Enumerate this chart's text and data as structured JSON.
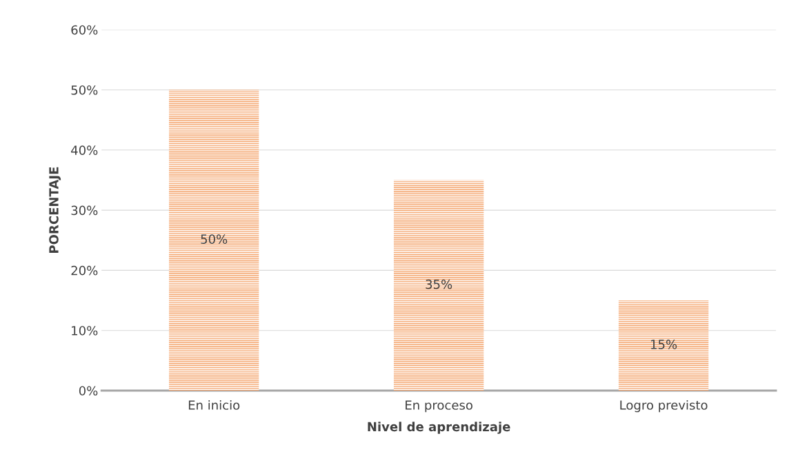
{
  "chart_data": {
    "type": "bar",
    "categories": [
      "En inicio",
      "En proceso",
      "Logro previsto"
    ],
    "values": [
      50,
      35,
      15
    ],
    "value_labels": [
      "50%",
      "35%",
      "15%"
    ],
    "color": "#f4a46c",
    "xlabel": "Nivel de aprendizaje",
    "ylabel": "PORCENTAJE",
    "ylim": [
      0,
      60
    ],
    "yticks": [
      {
        "value": 0,
        "label": "0%"
      },
      {
        "value": 10,
        "label": "10%"
      },
      {
        "value": 20,
        "label": "20%"
      },
      {
        "value": 30,
        "label": "30%"
      },
      {
        "value": 40,
        "label": "40%"
      },
      {
        "value": 50,
        "label": "50%"
      },
      {
        "value": 60,
        "label": "60%"
      }
    ],
    "grid": "y",
    "legend": false
  }
}
